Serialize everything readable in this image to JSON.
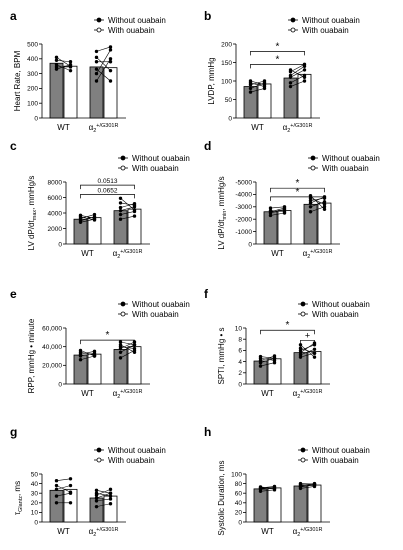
{
  "legend": {
    "without": "Without ouabain",
    "with": "With ouabain"
  },
  "groups": {
    "wt": "WT",
    "mut_base": "α",
    "mut_sub": "2",
    "mut_sup": "+/G301R"
  },
  "colors": {
    "without": "#808080",
    "with": "#ffffff",
    "stroke": "#000000"
  },
  "chart_data": [
    {
      "type": "bar",
      "panel": "a",
      "ylabel": "Heart  Rate, BPM",
      "ylim": [
        0,
        500
      ],
      "ticks": [
        0,
        100,
        200,
        300,
        400,
        500
      ],
      "tick_labels": [
        "0",
        "100",
        "200",
        "300",
        "400",
        "500"
      ],
      "categories": [
        "WT",
        "α2+/G301R"
      ],
      "series": [
        {
          "name": "Without ouabain",
          "values": [
            370,
            345
          ]
        },
        {
          "name": "With ouabain",
          "values": [
            350,
            340
          ]
        }
      ],
      "pairs": [
        [
          [
            360,
            320
          ],
          [
            390,
            380
          ],
          [
            410,
            350
          ],
          [
            345,
            345
          ],
          [
            330,
            360
          ]
        ],
        [
          [
            250,
            400
          ],
          [
            300,
            460
          ],
          [
            330,
            250
          ],
          [
            380,
            380
          ],
          [
            410,
            320
          ],
          [
            450,
            480
          ]
        ]
      ],
      "legend_position": "top-right",
      "annotations": []
    },
    {
      "type": "bar",
      "panel": "b",
      "ylabel": "LVDP, mmHg",
      "ylim": [
        0,
        200
      ],
      "ticks": [
        0,
        50,
        100,
        150,
        200
      ],
      "tick_labels": [
        "0",
        "50",
        "100",
        "150",
        "200"
      ],
      "categories": [
        "WT",
        "α2+/G301R"
      ],
      "series": [
        {
          "name": "Without ouabain",
          "values": [
            85,
            108
          ]
        },
        {
          "name": "With ouabain",
          "values": [
            92,
            118
          ]
        }
      ],
      "pairs": [
        [
          [
            70,
            80
          ],
          [
            80,
            95
          ],
          [
            90,
            100
          ],
          [
            95,
            85
          ],
          [
            100,
            90
          ]
        ],
        [
          [
            85,
            100
          ],
          [
            95,
            115
          ],
          [
            110,
            130
          ],
          [
            115,
            140
          ],
          [
            125,
            145
          ],
          [
            130,
            110
          ]
        ]
      ],
      "legend_position": "top-right",
      "annotations": [
        {
          "text": "*",
          "from": 0,
          "to": 1,
          "y": 180,
          "type": "bracket"
        },
        {
          "text": "*",
          "from": 0,
          "to": 1,
          "y": 145,
          "type": "bracket"
        }
      ]
    },
    {
      "type": "bar",
      "panel": "c",
      "ylabel": "LV dP/dtmax, mmHg/s",
      "ylabel_base": "LV dP/dt",
      "ylabel_sub": "max",
      "ylabel_tail": ", mmHg/s",
      "ylim": [
        0,
        8000
      ],
      "ticks": [
        0,
        2000,
        4000,
        6000,
        8000
      ],
      "tick_labels": [
        "0",
        "2000",
        "4000",
        "6000",
        "8000"
      ],
      "categories": [
        "WT",
        "α2+/G301R"
      ],
      "series": [
        {
          "name": "Without ouabain",
          "values": [
            3200,
            4300
          ]
        },
        {
          "name": "With ouabain",
          "values": [
            3400,
            4500
          ]
        }
      ],
      "pairs": [
        [
          [
            2800,
            3200
          ],
          [
            3000,
            3500
          ],
          [
            3300,
            3800
          ],
          [
            3500,
            3100
          ],
          [
            3700,
            3300
          ]
        ],
        [
          [
            3200,
            3600
          ],
          [
            3800,
            4200
          ],
          [
            4300,
            4800
          ],
          [
            4700,
            5200
          ],
          [
            5300,
            5000
          ],
          [
            5900,
            4400
          ]
        ]
      ],
      "legend_position": "top-right",
      "annotations": [
        {
          "text": "0.0513",
          "from": 0,
          "to": 1,
          "y": 7600,
          "type": "bracket"
        },
        {
          "text": "0.0652",
          "from": 0,
          "to": 1,
          "y": 6400,
          "type": "bracket"
        }
      ]
    },
    {
      "type": "bar",
      "panel": "d",
      "ylabel": "LV dP/dtmin, mmHg/s",
      "ylabel_base": "LV dP/dt",
      "ylabel_sub": "min",
      "ylabel_tail": ", mmHg/s",
      "ylim": [
        0,
        -5000
      ],
      "ticks": [
        0,
        -1000,
        -2000,
        -3000,
        -4000,
        -5000
      ],
      "tick_labels": [
        "0",
        "-1000",
        "-2000",
        "-3000",
        "-4000",
        "-5000"
      ],
      "categories": [
        "WT",
        "α2+/G301R"
      ],
      "series": [
        {
          "name": "Without ouabain",
          "values": [
            -2600,
            -3200
          ]
        },
        {
          "name": "With ouabain",
          "values": [
            -2700,
            -3300
          ]
        }
      ],
      "pairs": [
        [
          [
            -2300,
            -2500
          ],
          [
            -2500,
            -2800
          ],
          [
            -2700,
            -2600
          ],
          [
            -2900,
            -3000
          ],
          [
            -2600,
            -2900
          ]
        ],
        [
          [
            -2600,
            -3000
          ],
          [
            -3000,
            -3400
          ],
          [
            -3300,
            -3800
          ],
          [
            -3500,
            -3700
          ],
          [
            -3700,
            -3200
          ],
          [
            -3900,
            -2800
          ]
        ]
      ],
      "legend_position": "top-right",
      "annotations": [
        {
          "text": "*",
          "from": 0,
          "to": 1,
          "y": -4500,
          "type": "bracket"
        },
        {
          "text": "*",
          "from": 0,
          "to": 1,
          "y": -3800,
          "type": "bracket"
        }
      ]
    },
    {
      "type": "bar",
      "panel": "e",
      "ylabel": "RPP, mmHg • minute",
      "ylim": [
        0,
        60000
      ],
      "ticks": [
        0,
        20000,
        40000,
        60000
      ],
      "tick_labels": [
        "0",
        "20,000",
        "40,000",
        "60,000"
      ],
      "categories": [
        "WT",
        "α2+/G301R"
      ],
      "series": [
        {
          "name": "Without ouabain",
          "values": [
            31000,
            37000
          ]
        },
        {
          "name": "With ouabain",
          "values": [
            32000,
            40000
          ]
        }
      ],
      "pairs": [
        [
          [
            26000,
            30000
          ],
          [
            30000,
            33000
          ],
          [
            32000,
            35000
          ],
          [
            34000,
            31000
          ],
          [
            36000,
            30000
          ]
        ],
        [
          [
            28000,
            36000
          ],
          [
            34000,
            42000
          ],
          [
            38000,
            45000
          ],
          [
            40000,
            38000
          ],
          [
            45000,
            42000
          ],
          [
            42000,
            34000
          ]
        ]
      ],
      "legend_position": "top-right",
      "annotations": [
        {
          "text": "*",
          "from": 0,
          "to": 1,
          "y": 47000,
          "type": "bracket"
        }
      ]
    },
    {
      "type": "bar",
      "panel": "f",
      "ylabel": "SPTI, mmHg • s",
      "ylim": [
        0,
        10
      ],
      "ticks": [
        0,
        2,
        4,
        6,
        8,
        10
      ],
      "tick_labels": [
        "0",
        "2",
        "4",
        "6",
        "8",
        "10"
      ],
      "categories": [
        "WT",
        "α2+/G301R"
      ],
      "series": [
        {
          "name": "Without ouabain",
          "values": [
            4.1,
            5.6
          ]
        },
        {
          "name": "With ouabain",
          "values": [
            4.5,
            5.8
          ]
        }
      ],
      "pairs": [
        [
          [
            3.2,
            3.8
          ],
          [
            3.8,
            4.6
          ],
          [
            4.2,
            5.0
          ],
          [
            4.6,
            4.2
          ],
          [
            4.9,
            4.6
          ]
        ],
        [
          [
            4.8,
            5.5
          ],
          [
            5.2,
            6.2
          ],
          [
            5.6,
            7.3
          ],
          [
            6.0,
            7.0
          ],
          [
            6.4,
            5.5
          ],
          [
            7.0,
            4.8
          ]
        ]
      ],
      "legend_position": "top-right",
      "annotations": [
        {
          "text": "*",
          "from": 0,
          "to": 1,
          "y": 9.6,
          "type": "bracket"
        },
        {
          "text": "+",
          "from": 1,
          "to": 1,
          "y": 7.8,
          "type": "within"
        }
      ]
    },
    {
      "type": "bar",
      "panel": "g",
      "ylabel": "τGlantz, ms",
      "ylabel_base": "τ",
      "ylabel_sub": "Glantz",
      "ylabel_tail": ", ms",
      "ylim": [
        0,
        50
      ],
      "ticks": [
        0,
        10,
        20,
        30,
        40,
        50
      ],
      "tick_labels": [
        "0",
        "10",
        "20",
        "30",
        "40",
        "50"
      ],
      "categories": [
        "WT",
        "α2+/G301R"
      ],
      "series": [
        {
          "name": "Without ouabain",
          "values": [
            33,
            25
          ]
        },
        {
          "name": "With ouabain",
          "values": [
            34,
            27
          ]
        }
      ],
      "pairs": [
        [
          [
            20,
            20
          ],
          [
            27,
            30
          ],
          [
            34,
            38
          ],
          [
            43,
            45
          ],
          [
            38,
            31
          ]
        ],
        [
          [
            16,
            19
          ],
          [
            22,
            24
          ],
          [
            25,
            30
          ],
          [
            28,
            34
          ],
          [
            30,
            27
          ],
          [
            33,
            30
          ]
        ]
      ],
      "legend_position": "top-right",
      "annotations": []
    },
    {
      "type": "bar",
      "panel": "h",
      "ylabel": "Systolic Duration, ms",
      "ylim": [
        0,
        100
      ],
      "ticks": [
        0,
        20,
        40,
        60,
        80,
        100
      ],
      "tick_labels": [
        "0",
        "20",
        "40",
        "60",
        "80",
        "100"
      ],
      "categories": [
        "WT",
        "α2+/G301R"
      ],
      "series": [
        {
          "name": "Without ouabain",
          "values": [
            69,
            75
          ]
        },
        {
          "name": "With ouabain",
          "values": [
            71,
            77
          ]
        }
      ],
      "pairs": [
        [
          [
            64,
            67
          ],
          [
            68,
            70
          ],
          [
            71,
            74
          ],
          [
            73,
            70
          ],
          [
            70,
            72
          ]
        ],
        [
          [
            70,
            74
          ],
          [
            73,
            78
          ],
          [
            76,
            80
          ],
          [
            78,
            76
          ],
          [
            80,
            79
          ],
          [
            74,
            77
          ]
        ]
      ],
      "legend_position": "top-right",
      "annotations": []
    }
  ]
}
